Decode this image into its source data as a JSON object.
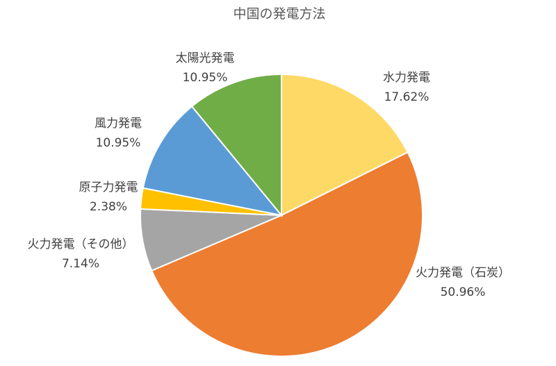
{
  "chart_data": {
    "type": "pie",
    "title": "中国の発電方法",
    "slices": [
      {
        "label": "水力発電",
        "value": 17.62,
        "value_label": "17.62%",
        "color": "#FFD966"
      },
      {
        "label": "火力発電（石炭）",
        "value": 50.96,
        "value_label": "50.96%",
        "color": "#ED7D31"
      },
      {
        "label": "火力発電（その他）",
        "value": 7.14,
        "value_label": "7.14%",
        "color": "#A5A5A5"
      },
      {
        "label": "原子力発電",
        "value": 2.38,
        "value_label": "2.38%",
        "color": "#FFC000"
      },
      {
        "label": "風力発電",
        "value": 10.95,
        "value_label": "10.95%",
        "color": "#5B9BD5"
      },
      {
        "label": "太陽光発電",
        "value": 10.95,
        "value_label": "10.95%",
        "color": "#70AD47"
      }
    ],
    "legend": "none",
    "start_angle": "12 o'clock",
    "direction": "clockwise"
  }
}
